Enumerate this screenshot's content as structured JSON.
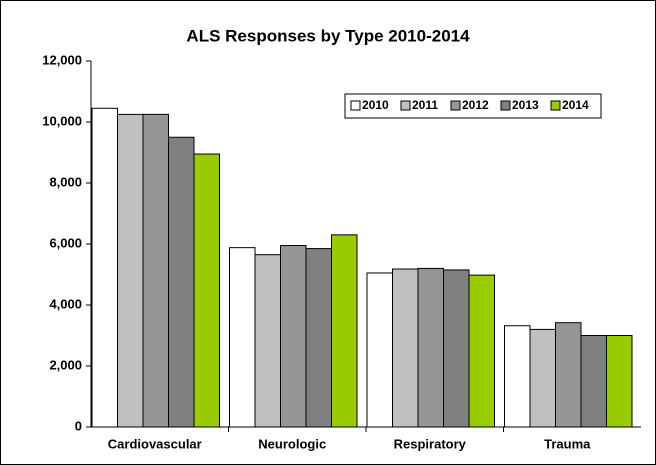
{
  "chart_data": {
    "type": "bar",
    "title": "ALS Responses by Type 2010-2014",
    "categories": [
      "Cardiovascular",
      "Neurologic",
      "Respiratory",
      "Trauma"
    ],
    "series": [
      {
        "name": "2010",
        "color": "#ffffff",
        "values": [
          10450,
          5880,
          5050,
          3320
        ]
      },
      {
        "name": "2011",
        "color": "#c0c0c0",
        "values": [
          10250,
          5650,
          5180,
          3200
        ]
      },
      {
        "name": "2012",
        "color": "#969696",
        "values": [
          10250,
          5950,
          5200,
          3420
        ]
      },
      {
        "name": "2013",
        "color": "#808080",
        "values": [
          9500,
          5850,
          5150,
          3000
        ]
      },
      {
        "name": "2014",
        "color": "#99cc00",
        "values": [
          8950,
          6300,
          4980,
          3000
        ]
      }
    ],
    "ylim": [
      0,
      12000
    ],
    "yticks": [
      0,
      {
        "value": 2000,
        "label": "2,000"
      },
      {
        "value": 4000,
        "label": "4,000"
      },
      {
        "value": 6000,
        "label": "6,000"
      },
      {
        "value": 8000,
        "label": "8,000"
      },
      {
        "value": 10000,
        "label": "10,000"
      },
      {
        "value": 12000,
        "label": "12,000"
      }
    ],
    "grid": false,
    "legend": "top-right"
  }
}
